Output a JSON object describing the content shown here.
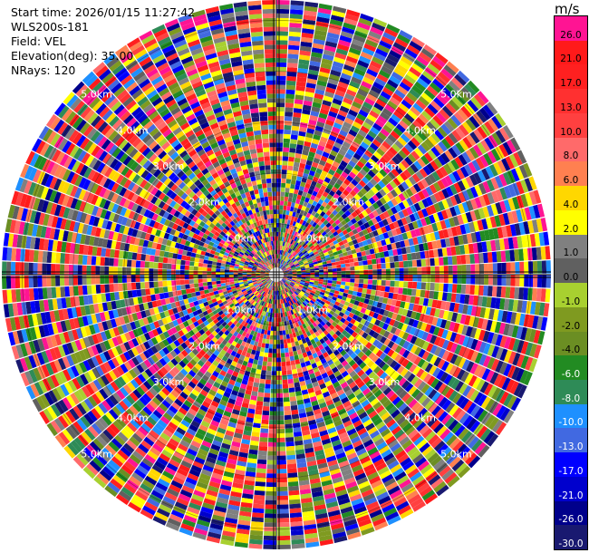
{
  "header": {
    "start_time": "Start time: 2026/01/15 11:27:42",
    "instrument": "WLS200s-181",
    "field": "Field: VEL",
    "elevation": "Elevation(deg): 35.00",
    "nrays": "NRays: 120"
  },
  "colorbar": {
    "unit": "m/s",
    "ticks": [
      "26.0",
      "21.0",
      "17.0",
      "13.0",
      "10.0",
      "8.0",
      "6.0",
      "4.0",
      "2.0",
      "1.0",
      "0.0",
      "-1.0",
      "-2.0",
      "-4.0",
      "-6.0",
      "-8.0",
      "-10.0",
      "-13.0",
      "-17.0",
      "-21.0",
      "-26.0",
      "-30.0"
    ],
    "colors": [
      "#ff1493",
      "#ff1a1a",
      "#ff2020",
      "#ff3030",
      "#ff4040",
      "#ff6a6a",
      "#ff8050",
      "#ffd700",
      "#ffff00",
      "#808080",
      "#606060",
      "#a8d030",
      "#7f9a20",
      "#6b8e23",
      "#228b22",
      "#2e8b57",
      "#1e90ff",
      "#4169e1",
      "#0000ff",
      "#0000cd",
      "#00008b",
      "#191970"
    ],
    "text_colors": [
      "#000",
      "#000",
      "#000",
      "#000",
      "#000",
      "#000",
      "#000",
      "#000",
      "#000",
      "#000",
      "#000",
      "#000",
      "#000",
      "#000",
      "#fff",
      "#fff",
      "#fff",
      "#fff",
      "#fff",
      "#fff",
      "#fff",
      "#fff"
    ]
  },
  "chart_data": {
    "type": "heatmap",
    "projection": "polar-ppi",
    "field": "VEL",
    "unit": "m/s",
    "n_rays": 120,
    "elevation_deg": 35.0,
    "range_ring_labels": [
      "1.0km",
      "2.0km",
      "3.0km",
      "4.0km",
      "5.0km"
    ],
    "range_max_km": 5.4,
    "grid": true,
    "colorbar_placement": "right",
    "color_levels": [
      26.0,
      21.0,
      17.0,
      13.0,
      10.0,
      8.0,
      6.0,
      4.0,
      2.0,
      1.0,
      0.0,
      -1.0,
      -2.0,
      -4.0,
      -6.0,
      -8.0,
      -10.0,
      -13.0,
      -17.0,
      -21.0,
      -26.0,
      -30.0
    ],
    "data_pattern": "noisy velocity field; values vary randomly across all color bins"
  }
}
